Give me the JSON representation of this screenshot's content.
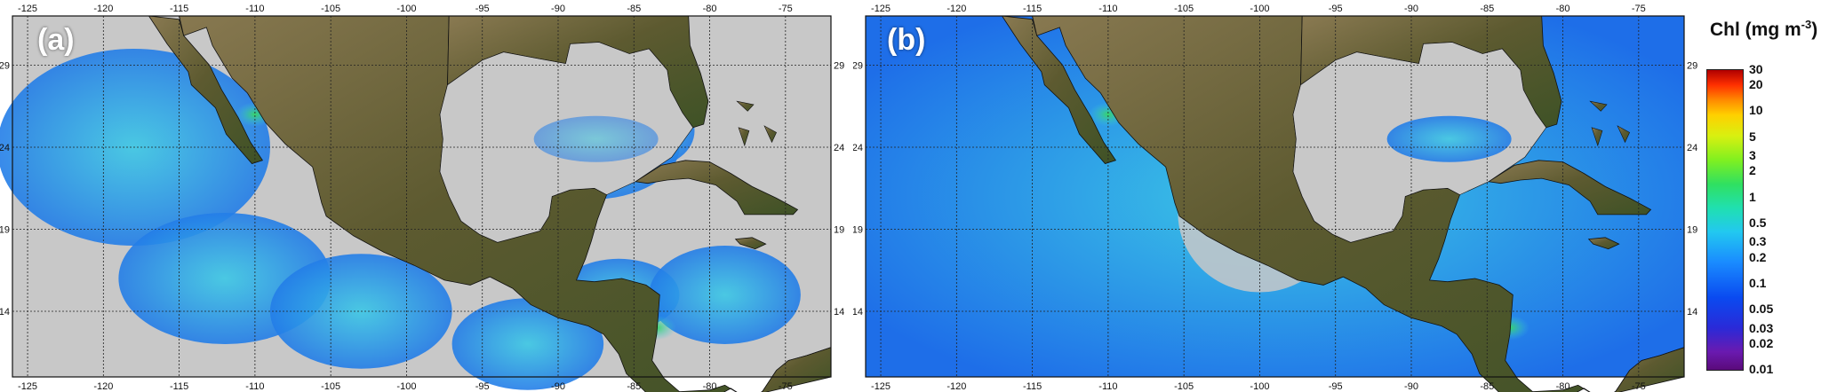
{
  "panels": [
    {
      "id": "a",
      "label": "(a)"
    },
    {
      "id": "b",
      "label": "(b)"
    }
  ],
  "map_extent": {
    "lon_min": -126,
    "lon_max": -72,
    "lat_min": 10,
    "lat_max": 32
  },
  "lon_ticks": [
    -125,
    -120,
    -115,
    -110,
    -105,
    -100,
    -95,
    -90,
    -85,
    -80,
    -75
  ],
  "lat_ticks": [
    14,
    19,
    24,
    29
  ],
  "colorbar": {
    "title": "Chl (mg m",
    "title_sup": "-3",
    "title_close": ")",
    "ticks": [
      "30",
      "20",
      "10",
      "5",
      "3",
      "2",
      "1",
      "0.5",
      "0.3",
      "0.2",
      "0.1",
      "0.05",
      "0.03",
      "0.02",
      "0.01"
    ],
    "tick_values": [
      30,
      20,
      10,
      5,
      3,
      2,
      1,
      0.5,
      0.3,
      0.2,
      0.1,
      0.05,
      0.03,
      0.02,
      0.01
    ],
    "range": [
      0.01,
      30
    ],
    "scale": "log",
    "colors": [
      "#5a0a7a",
      "#2a2ad8",
      "#1a8cff",
      "#22c8f0",
      "#30e060",
      "#d8f010",
      "#ff8a00",
      "#b00000"
    ]
  },
  "map_colors": {
    "no_data": "#c8c8c8",
    "land": "#5d5a30",
    "ocean_low": "#1e6ee8",
    "ocean_mid": "#3cc8e6",
    "ocean_high": "#38d860"
  }
}
